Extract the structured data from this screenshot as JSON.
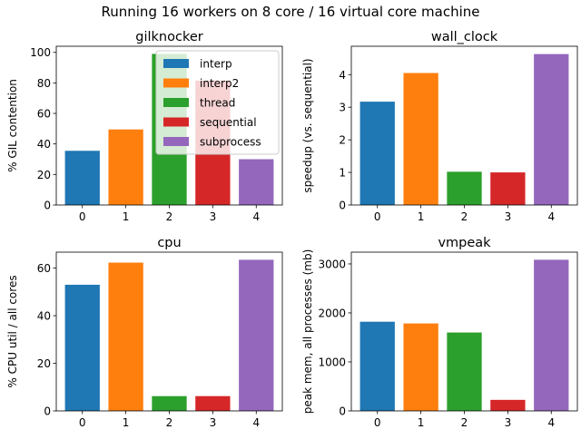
{
  "figure_title": "Running 16 workers on 8 core / 16 virtual core machine",
  "legend": {
    "entries": [
      {
        "label": "interp",
        "color": "#1f77b4"
      },
      {
        "label": "interp2",
        "color": "#ff7f0e"
      },
      {
        "label": "thread",
        "color": "#2ca02c"
      },
      {
        "label": "sequential",
        "color": "#d62728"
      },
      {
        "label": "subprocess",
        "color": "#9467bd"
      }
    ]
  },
  "chart_data": [
    {
      "type": "bar",
      "title": "gilknocker",
      "xlabel": "",
      "ylabel": "% GIL contention",
      "categories": [
        "0",
        "1",
        "2",
        "3",
        "4"
      ],
      "values": [
        35.5,
        49.5,
        99,
        81.5,
        30
      ],
      "colors": [
        "#1f77b4",
        "#ff7f0e",
        "#2ca02c",
        "#d62728",
        "#9467bd"
      ],
      "ylim": [
        0,
        104
      ],
      "yticks": [
        0,
        20,
        40,
        60,
        80,
        100
      ],
      "legend_position": "upper-right",
      "grid": false
    },
    {
      "type": "bar",
      "title": "wall_clock",
      "xlabel": "",
      "ylabel": "speedup (vs. sequential)",
      "categories": [
        "0",
        "1",
        "2",
        "3",
        "4"
      ],
      "values": [
        3.17,
        4.05,
        1.02,
        1.0,
        4.63
      ],
      "colors": [
        "#1f77b4",
        "#ff7f0e",
        "#2ca02c",
        "#d62728",
        "#9467bd"
      ],
      "ylim": [
        0,
        4.87
      ],
      "yticks": [
        0,
        1,
        2,
        3,
        4
      ],
      "grid": false
    },
    {
      "type": "bar",
      "title": "cpu",
      "xlabel": "",
      "ylabel": "% CPU util / all cores",
      "categories": [
        "0",
        "1",
        "2",
        "3",
        "4"
      ],
      "values": [
        53,
        62.3,
        6.2,
        6.2,
        63.5
      ],
      "colors": [
        "#1f77b4",
        "#ff7f0e",
        "#2ca02c",
        "#d62728",
        "#9467bd"
      ],
      "ylim": [
        0,
        66.7
      ],
      "yticks": [
        0,
        20,
        40,
        60
      ],
      "grid": false
    },
    {
      "type": "bar",
      "title": "vmpeak",
      "xlabel": "",
      "ylabel": "peak mem, all processes (mb)",
      "categories": [
        "0",
        "1",
        "2",
        "3",
        "4"
      ],
      "values": [
        1820,
        1785,
        1600,
        225,
        3085
      ],
      "colors": [
        "#1f77b4",
        "#ff7f0e",
        "#2ca02c",
        "#d62728",
        "#9467bd"
      ],
      "ylim": [
        0,
        3240
      ],
      "yticks": [
        0,
        1000,
        2000,
        3000
      ],
      "grid": false
    }
  ]
}
